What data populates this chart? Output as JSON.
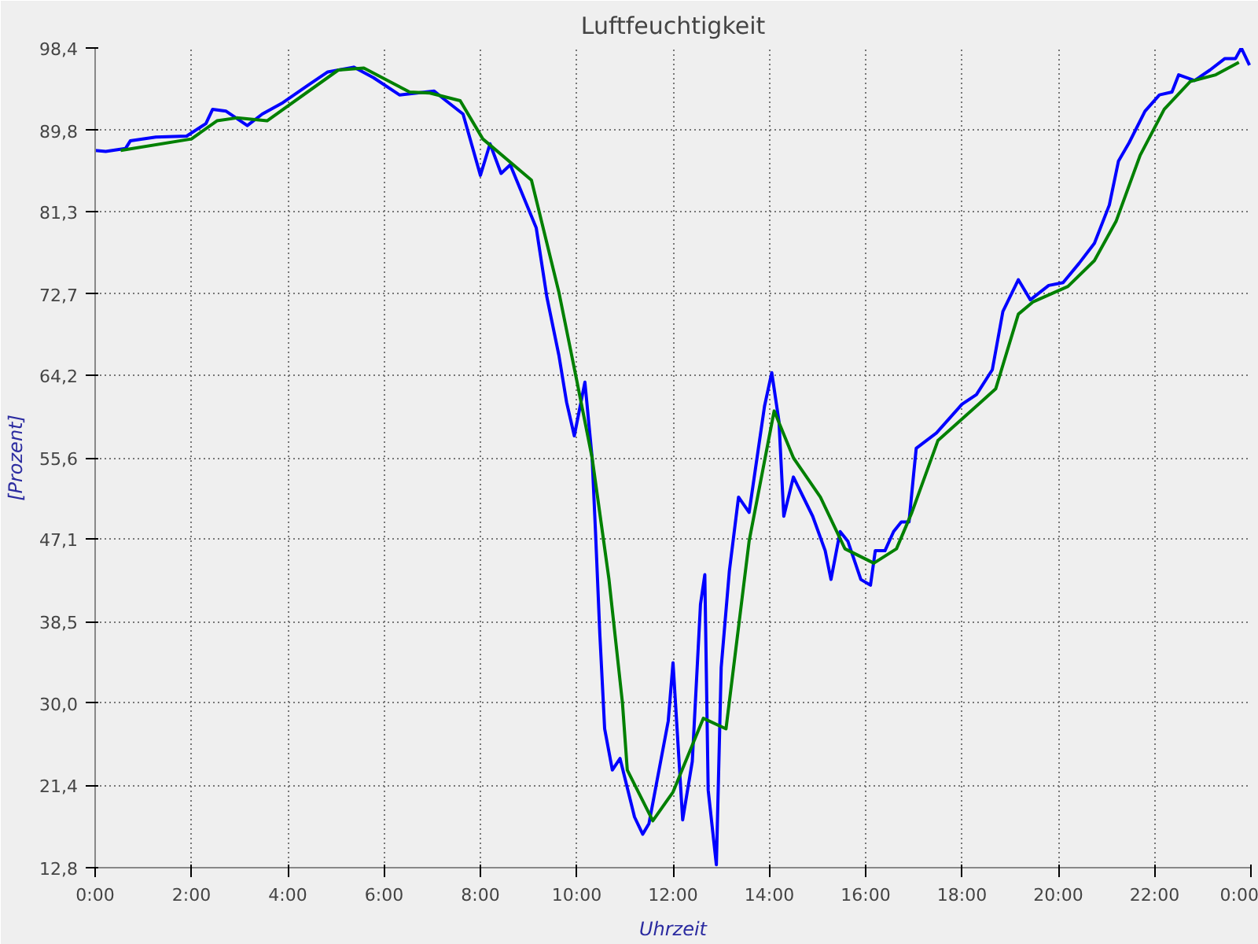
{
  "chart_data": {
    "type": "line",
    "title": "Luftfeuchtigkeit",
    "xlabel": "Uhrzeit",
    "ylabel": "[Prozent]",
    "xlim": [
      0,
      24
    ],
    "ylim": [
      12.8,
      98.4
    ],
    "xticks": [
      {
        "value": 0,
        "label": "0:00"
      },
      {
        "value": 2,
        "label": "2:00"
      },
      {
        "value": 4,
        "label": "4:00"
      },
      {
        "value": 6,
        "label": "6:00"
      },
      {
        "value": 8,
        "label": "8:00"
      },
      {
        "value": 10,
        "label": "10:00"
      },
      {
        "value": 12,
        "label": "12:00"
      },
      {
        "value": 14,
        "label": "14:00"
      },
      {
        "value": 16,
        "label": "16:00"
      },
      {
        "value": 18,
        "label": "18:00"
      },
      {
        "value": 20,
        "label": "20:00"
      },
      {
        "value": 22,
        "label": "22:00"
      },
      {
        "value": 24,
        "label": "0:00"
      }
    ],
    "yticks": [
      {
        "value": 12.8,
        "label": "12,8"
      },
      {
        "value": 21.4,
        "label": "21,4"
      },
      {
        "value": 30.0,
        "label": "30,0"
      },
      {
        "value": 38.5,
        "label": "38,5"
      },
      {
        "value": 47.1,
        "label": "47,1"
      },
      {
        "value": 55.6,
        "label": "55,6"
      },
      {
        "value": 64.2,
        "label": "64,2"
      },
      {
        "value": 72.7,
        "label": "72,7"
      },
      {
        "value": 81.3,
        "label": "81,3"
      },
      {
        "value": 89.8,
        "label": "89,8"
      },
      {
        "value": 98.4,
        "label": "98,4"
      }
    ],
    "grid": true,
    "line_style": "solid",
    "series": [
      {
        "color": "#0000ff",
        "x": [
          0,
          0.22,
          0.63,
          0.73,
          1.26,
          1.9,
          2.3,
          2.44,
          2.72,
          3.16,
          3.47,
          3.9,
          4.42,
          4.83,
          5.37,
          5.78,
          6.32,
          7.04,
          7.26,
          7.64,
          8.0,
          8.2,
          8.43,
          8.62,
          8.94,
          9.16,
          9.38,
          9.63,
          9.79,
          9.95,
          10.17,
          10.32,
          10.39,
          10.48,
          10.58,
          10.74,
          10.9,
          11.2,
          11.37,
          11.5,
          11.9,
          12.0,
          12.2,
          12.4,
          12.57,
          12.66,
          12.73,
          12.9,
          13.0,
          13.17,
          13.36,
          13.58,
          13.9,
          14.05,
          14.2,
          14.3,
          14.5,
          14.9,
          15.16,
          15.28,
          15.47,
          15.63,
          15.9,
          16.1,
          16.2,
          16.4,
          16.58,
          16.74,
          16.9,
          17.0,
          17.05,
          17.47,
          18.0,
          18.3,
          18.63,
          18.85,
          19.17,
          19.42,
          19.8,
          20.1,
          20.43,
          20.75,
          21.06,
          21.25,
          21.47,
          21.8,
          22.1,
          22.36,
          22.5,
          22.83,
          23.15,
          23.46,
          23.68,
          23.8,
          23.97
        ],
        "values": [
          87.7,
          87.6,
          87.9,
          88.7,
          89.1,
          89.2,
          90.5,
          92.0,
          91.8,
          90.3,
          91.5,
          92.7,
          94.5,
          95.9,
          96.4,
          95.3,
          93.5,
          93.9,
          93.0,
          91.5,
          85.1,
          88.4,
          85.3,
          86.2,
          82.3,
          79.6,
          72.4,
          66.3,
          61.4,
          57.9,
          63.5,
          55.6,
          47.9,
          37.2,
          27.3,
          23.0,
          24.2,
          18.1,
          16.3,
          17.4,
          28.1,
          34.2,
          17.8,
          23.9,
          40.3,
          43.4,
          20.9,
          13.1,
          33.7,
          43.8,
          51.5,
          49.9,
          61.0,
          64.5,
          59.4,
          49.5,
          53.6,
          49.5,
          45.9,
          42.9,
          47.9,
          46.9,
          42.9,
          42.3,
          45.9,
          45.9,
          47.9,
          48.9,
          48.9,
          54.1,
          56.6,
          58.2,
          61.2,
          62.2,
          64.8,
          70.9,
          74.2,
          72.1,
          73.6,
          73.9,
          75.9,
          78.0,
          82.0,
          86.6,
          88.5,
          91.8,
          93.5,
          93.8,
          95.6,
          95.0,
          96.1,
          97.3,
          97.3,
          98.4,
          96.6
        ]
      },
      {
        "color": "#008000",
        "x": [
          0.53,
          2.0,
          2.53,
          2.94,
          3.57,
          5.05,
          5.58,
          6.53,
          6.95,
          7.58,
          8.05,
          9.06,
          9.63,
          10.0,
          10.32,
          10.67,
          10.95,
          11.05,
          11.58,
          12.0,
          12.63,
          13.1,
          13.58,
          14.1,
          14.5,
          15.06,
          15.57,
          16.17,
          16.64,
          16.96,
          17.5,
          18.7,
          19.17,
          19.48,
          20.2,
          20.75,
          21.2,
          21.7,
          22.2,
          22.74,
          23.27,
          23.75
        ],
        "values": [
          87.7,
          88.9,
          90.8,
          91.1,
          90.8,
          96.1,
          96.3,
          93.8,
          93.7,
          92.9,
          88.9,
          84.6,
          72.9,
          63.7,
          55.6,
          42.9,
          30.0,
          23.0,
          17.7,
          20.7,
          28.4,
          27.3,
          46.9,
          60.5,
          55.6,
          51.5,
          46.1,
          44.6,
          46.1,
          49.9,
          57.4,
          62.8,
          70.6,
          71.9,
          73.5,
          76.2,
          80.3,
          87.2,
          92.0,
          94.9,
          95.6,
          96.9
        ]
      }
    ]
  }
}
